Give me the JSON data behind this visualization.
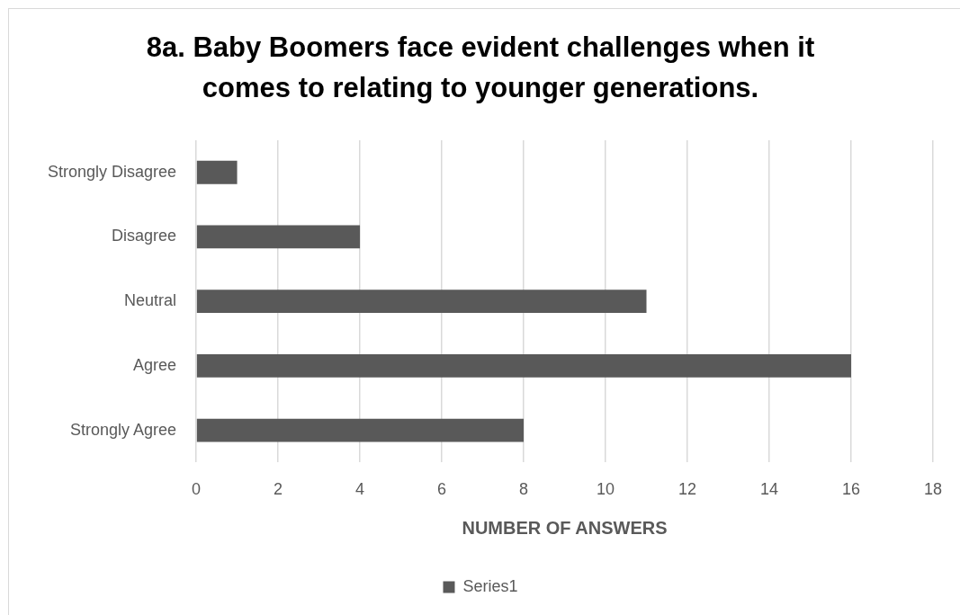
{
  "chart_data": {
    "type": "bar",
    "orientation": "horizontal",
    "title": "8a. Baby Boomers face evident challenges when it comes to relating to younger generations.",
    "xlabel": "NUMBER OF ANSWERS",
    "categories": [
      "Strongly Disagree",
      "Disagree",
      "Neutral",
      "Agree",
      "Strongly Agree"
    ],
    "series": [
      {
        "name": "Series1",
        "color": "#595959",
        "values": [
          1,
          4,
          11,
          16,
          8
        ]
      }
    ],
    "xlim": [
      0,
      18
    ],
    "xticks": [
      0,
      2,
      4,
      6,
      8,
      10,
      12,
      14,
      16,
      18
    ],
    "grid": "x",
    "legend": "bottom"
  }
}
